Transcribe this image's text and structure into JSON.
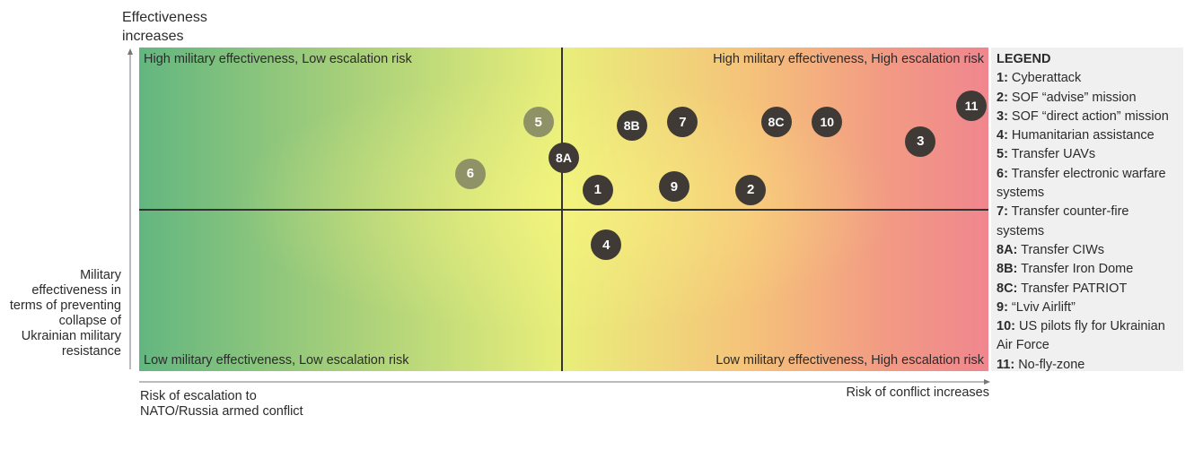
{
  "y_axis": {
    "top_title": "Effectiveness increases",
    "side_title": "Military effectiveness in terms of preventing collapse of Ukrainian military resistance"
  },
  "x_axis": {
    "left_title": "Risk of escalation to NATO/Russia armed conflict",
    "right_title": "Risk of conflict increases"
  },
  "quadrants": {
    "top_left": "High military effectiveness, Low escalation risk",
    "top_right": "High military effectiveness, High escalation risk",
    "bottom_left": "Low military effectiveness, Low escalation risk",
    "bottom_right": "Low military effectiveness, High escalation risk"
  },
  "colors": {
    "marker": "#3f3a35",
    "marker_faded": "#8f9266",
    "low_risk": "#63b680",
    "mid": "#e9ee7a",
    "high_risk": "#f0868e"
  },
  "chart_data": {
    "type": "scatter",
    "title": "",
    "xlabel": "Risk of escalation to NATO/Russia armed conflict",
    "ylabel": "Military effectiveness in terms of preventing collapse of Ukrainian military resistance",
    "xlim": [
      0,
      10
    ],
    "ylim": [
      0,
      10
    ],
    "grid": false,
    "legend_position": "right",
    "points": [
      {
        "label": "1",
        "x": 5.4,
        "y": 5.6,
        "faded": false
      },
      {
        "label": "2",
        "x": 7.2,
        "y": 5.6,
        "faded": false
      },
      {
        "label": "3",
        "x": 9.2,
        "y": 7.1,
        "faded": false
      },
      {
        "label": "4",
        "x": 5.5,
        "y": 3.9,
        "faded": false
      },
      {
        "label": "5",
        "x": 4.7,
        "y": 7.7,
        "faded": true
      },
      {
        "label": "6",
        "x": 3.9,
        "y": 6.1,
        "faded": true
      },
      {
        "label": "7",
        "x": 6.4,
        "y": 7.7,
        "faded": false
      },
      {
        "label": "8A",
        "x": 5.0,
        "y": 6.6,
        "faded": false
      },
      {
        "label": "8B",
        "x": 5.8,
        "y": 7.6,
        "faded": false
      },
      {
        "label": "8C",
        "x": 7.5,
        "y": 7.7,
        "faded": false
      },
      {
        "label": "9",
        "x": 6.3,
        "y": 5.7,
        "faded": false
      },
      {
        "label": "10",
        "x": 8.1,
        "y": 7.7,
        "faded": false
      },
      {
        "label": "11",
        "x": 9.8,
        "y": 8.2,
        "faded": false
      }
    ],
    "legend": {
      "title": "LEGEND",
      "entries": [
        {
          "key": "1:",
          "text": "Cyberattack"
        },
        {
          "key": "2:",
          "text": "SOF “advise” mission"
        },
        {
          "key": "3:",
          "text": "SOF “direct action” mission"
        },
        {
          "key": "4:",
          "text": "Humanitarian assistance"
        },
        {
          "key": "5:",
          "text": "Transfer UAVs"
        },
        {
          "key": "6:",
          "text": "Transfer electronic warfare systems"
        },
        {
          "key": "7:",
          "text": "Transfer counter-fire systems"
        },
        {
          "key": "8A:",
          "text": "Transfer CIWs"
        },
        {
          "key": "8B:",
          "text": "Transfer Iron Dome"
        },
        {
          "key": "8C:",
          "text": "Transfer PATRIOT"
        },
        {
          "key": "9:",
          "text": "“Lviv Airlift”"
        },
        {
          "key": "10:",
          "text": "US pilots fly for Ukrainian Air Force"
        },
        {
          "key": "11:",
          "text": "No-fly-zone"
        }
      ]
    }
  }
}
